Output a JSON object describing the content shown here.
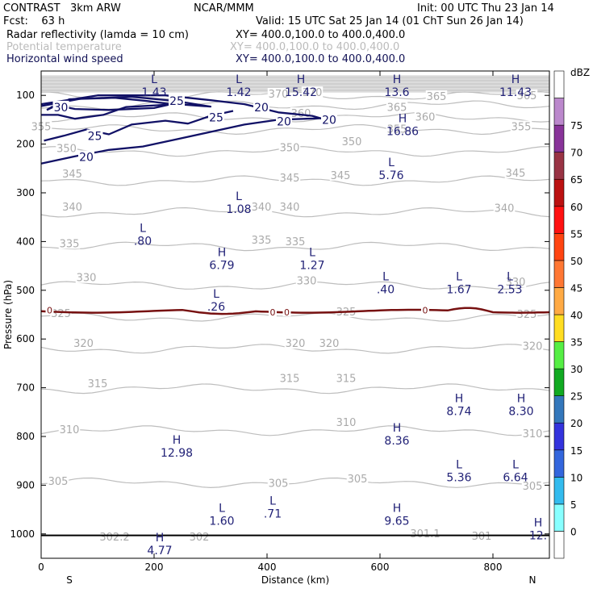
{
  "header": {
    "model": "CONTRAST   3km ARW",
    "center": "NCAR/MMM",
    "init": "Init: 00 UTC Thu 23 Jan 14",
    "fcst": "Fcst:    63 h",
    "valid": "Valid: 15 UTC Sat 25 Jan 14 (01 ChT Sun 26 Jan 14)",
    "fields": [
      {
        "name": "Radar reflectivity (lamda = 10 cm)",
        "xy": "XY= 400.0,100.0 to 400.0,400.0",
        "color": "#000000"
      },
      {
        "name": "Potential temperature",
        "xy": "XY= 400.0,100.0 to 400.0,400.0",
        "color": "#bbbbbb"
      },
      {
        "name": "Horizontal wind speed",
        "xy": "XY= 400.0,100.0 to 400.0,400.0",
        "color": "#111155"
      }
    ]
  },
  "chart_data": {
    "type": "cross-section contour",
    "xlabel": "Distance (km)",
    "ylabel": "Pressure (hPa)",
    "xlim": [
      0,
      900
    ],
    "ylim": [
      1050,
      50
    ],
    "x_ticks": [
      0,
      200,
      400,
      600,
      800
    ],
    "y_ticks": [
      100,
      200,
      300,
      400,
      500,
      600,
      700,
      800,
      900,
      1000
    ],
    "end_labels": {
      "left": "S",
      "right": "N"
    },
    "colorbar": {
      "unit": "dBZ",
      "levels": [
        0,
        5,
        10,
        15,
        20,
        25,
        30,
        35,
        40,
        45,
        50,
        55,
        60,
        65,
        70,
        75
      ],
      "colors": [
        "#ffffff",
        "#88ffff",
        "#33bbee",
        "#3366dd",
        "#3333dd",
        "#3377bb",
        "#11aa22",
        "#55ee44",
        "#ffdd22",
        "#ffaa44",
        "#ff7733",
        "#ff4411",
        "#ff1111",
        "#bb1111",
        "#993344",
        "#883399",
        "#bb88cc",
        "#ffffff"
      ]
    },
    "theta_contours": [
      {
        "value": 305,
        "pressure": 895
      },
      {
        "value": 310,
        "pressure": 788
      },
      {
        "value": 315,
        "pressure": 702
      },
      {
        "value": 320,
        "pressure": 620
      },
      {
        "value": 325,
        "pressure": 555
      },
      {
        "value": 330,
        "pressure": 490
      },
      {
        "value": 335,
        "pressure": 410
      },
      {
        "value": 340,
        "pressure": 340
      },
      {
        "value": 345,
        "pressure": 275
      },
      {
        "value": 350,
        "pressure": 215
      },
      {
        "value": 355,
        "pressure": 170
      },
      {
        "value": 360,
        "pressure": 145
      },
      {
        "value": 365,
        "pressure": 120
      },
      {
        "value": 370,
        "pressure": 100
      }
    ],
    "theta_labels": [
      {
        "text": "305",
        "x": 30,
        "p": 893
      },
      {
        "text": "305",
        "x": 420,
        "p": 897
      },
      {
        "text": "305",
        "x": 560,
        "p": 888
      },
      {
        "text": "305",
        "x": 870,
        "p": 903
      },
      {
        "text": "310",
        "x": 50,
        "p": 787
      },
      {
        "text": "310",
        "x": 540,
        "p": 772
      },
      {
        "text": "310",
        "x": 870,
        "p": 795
      },
      {
        "text": "315",
        "x": 100,
        "p": 692
      },
      {
        "text": "315",
        "x": 440,
        "p": 682
      },
      {
        "text": "315",
        "x": 540,
        "p": 682
      },
      {
        "text": "320",
        "x": 75,
        "p": 610
      },
      {
        "text": "320",
        "x": 450,
        "p": 610
      },
      {
        "text": "320",
        "x": 510,
        "p": 610
      },
      {
        "text": "320",
        "x": 870,
        "p": 615
      },
      {
        "text": "325",
        "x": 35,
        "p": 548
      },
      {
        "text": "325",
        "x": 540,
        "p": 545
      },
      {
        "text": "325",
        "x": 860,
        "p": 550
      },
      {
        "text": "330",
        "x": 80,
        "p": 475
      },
      {
        "text": "330",
        "x": 470,
        "p": 481
      },
      {
        "text": "330",
        "x": 840,
        "p": 484
      },
      {
        "text": "335",
        "x": 50,
        "p": 405
      },
      {
        "text": "335",
        "x": 390,
        "p": 398
      },
      {
        "text": "335",
        "x": 450,
        "p": 401
      },
      {
        "text": "340",
        "x": 55,
        "p": 330
      },
      {
        "text": "340",
        "x": 390,
        "p": 330
      },
      {
        "text": "340",
        "x": 440,
        "p": 330
      },
      {
        "text": "340",
        "x": 820,
        "p": 332
      },
      {
        "text": "345",
        "x": 55,
        "p": 262
      },
      {
        "text": "345",
        "x": 440,
        "p": 270
      },
      {
        "text": "345",
        "x": 530,
        "p": 265
      },
      {
        "text": "345",
        "x": 840,
        "p": 260
      },
      {
        "text": "350",
        "x": 45,
        "p": 210
      },
      {
        "text": "350",
        "x": 440,
        "p": 208
      },
      {
        "text": "350",
        "x": 550,
        "p": 196
      },
      {
        "text": "355",
        "x": 0,
        "p": 165
      },
      {
        "text": "355",
        "x": 630,
        "p": 170
      },
      {
        "text": "355",
        "x": 850,
        "p": 165
      },
      {
        "text": "360",
        "x": 460,
        "p": 138
      },
      {
        "text": "360",
        "x": 680,
        "p": 145
      },
      {
        "text": "365",
        "x": 630,
        "p": 125
      },
      {
        "text": "365",
        "x": 700,
        "p": 103
      },
      {
        "text": "365",
        "x": 860,
        "p": 101
      },
      {
        "text": "370",
        "x": 420,
        "p": 98
      },
      {
        "text": "370",
        "x": 480,
        "p": 95
      },
      {
        "text": "302.2",
        "x": 130,
        "p": 1007
      },
      {
        "text": "302",
        "x": 280,
        "p": 1007
      },
      {
        "text": "301.1",
        "x": 680,
        "p": 1000
      },
      {
        "text": "301",
        "x": 780,
        "p": 1005
      }
    ],
    "wind_contours": [
      {
        "value": 30,
        "path": [
          [
            10,
            130
          ],
          [
            50,
            108
          ],
          [
            130,
            105
          ],
          [
            190,
            112
          ],
          [
            230,
            118
          ],
          [
            200,
            126
          ],
          [
            120,
            130
          ],
          [
            60,
            128
          ],
          [
            25,
            120
          ],
          [
            10,
            130
          ]
        ]
      },
      {
        "value": 25,
        "path": [
          [
            0,
            122
          ],
          [
            70,
            107
          ],
          [
            160,
            103
          ],
          [
            240,
            112
          ],
          [
            300,
            123
          ],
          [
            240,
            118
          ],
          [
            150,
            124
          ],
          [
            110,
            140
          ],
          [
            60,
            148
          ],
          [
            30,
            140
          ],
          [
            0,
            140
          ]
        ]
      },
      {
        "value": 25,
        "path": [
          [
            5,
            193
          ],
          [
            40,
            183
          ],
          [
            80,
            170
          ],
          [
            120,
            180
          ],
          [
            160,
            160
          ],
          [
            220,
            152
          ],
          [
            260,
            158
          ],
          [
            300,
            142
          ],
          [
            340,
            132
          ]
        ]
      },
      {
        "value": 20,
        "path": [
          [
            0,
            118
          ],
          [
            100,
            100
          ],
          [
            220,
            100
          ],
          [
            300,
            110
          ],
          [
            360,
            118
          ],
          [
            420,
            135
          ],
          [
            480,
            142
          ],
          [
            510,
            152
          ]
        ]
      },
      {
        "value": 20,
        "path": [
          [
            0,
            240
          ],
          [
            60,
            225
          ],
          [
            120,
            212
          ],
          [
            180,
            205
          ],
          [
            240,
            190
          ],
          [
            300,
            175
          ],
          [
            360,
            160
          ],
          [
            420,
            150
          ],
          [
            470,
            148
          ],
          [
            520,
            146
          ]
        ]
      }
    ],
    "wind_labels": [
      {
        "text": "30",
        "x": 35,
        "p": 126
      },
      {
        "text": "25",
        "x": 95,
        "p": 185
      },
      {
        "text": "25",
        "x": 240,
        "p": 113
      },
      {
        "text": "25",
        "x": 310,
        "p": 147
      },
      {
        "text": "20",
        "x": 80,
        "p": 228
      },
      {
        "text": "20",
        "x": 390,
        "p": 126
      },
      {
        "text": "20",
        "x": 430,
        "p": 155
      },
      {
        "text": "20",
        "x": 510,
        "p": 152
      }
    ],
    "reflectivity_line": {
      "label": "0",
      "pressure": 543
    },
    "extrema": [
      {
        "type": "L",
        "value": "1.43",
        "x": 200,
        "p": 75
      },
      {
        "type": "L",
        "value": "1.42",
        "x": 350,
        "p": 75
      },
      {
        "type": "H",
        "value": "15.42",
        "x": 460,
        "p": 75
      },
      {
        "type": "H",
        "value": "13.6",
        "x": 630,
        "p": 75
      },
      {
        "type": "H",
        "value": "11.43",
        "x": 840,
        "p": 75
      },
      {
        "type": "H",
        "value": "16.86",
        "x": 640,
        "p": 155
      },
      {
        "type": "L",
        "value": "5.76",
        "x": 620,
        "p": 245
      },
      {
        "type": "L",
        "value": "1.08",
        "x": 350,
        "p": 315
      },
      {
        "type": "L",
        "value": ".80",
        "x": 180,
        "p": 380
      },
      {
        "type": "H",
        "value": "6.79",
        "x": 320,
        "p": 430
      },
      {
        "type": "L",
        "value": "1.27",
        "x": 480,
        "p": 430
      },
      {
        "type": "L",
        "value": ".40",
        "x": 610,
        "p": 480
      },
      {
        "type": "L",
        "value": "1.67",
        "x": 740,
        "p": 480
      },
      {
        "type": "L",
        "value": "2.53",
        "x": 830,
        "p": 480
      },
      {
        "type": "L",
        "value": ".26",
        "x": 310,
        "p": 515
      },
      {
        "type": "H",
        "value": "8.74",
        "x": 740,
        "p": 730
      },
      {
        "type": "H",
        "value": "8.30",
        "x": 850,
        "p": 730
      },
      {
        "type": "H",
        "value": "8.36",
        "x": 630,
        "p": 790
      },
      {
        "type": "H",
        "value": "12.98",
        "x": 240,
        "p": 815
      },
      {
        "type": "L",
        "value": "5.36",
        "x": 740,
        "p": 865
      },
      {
        "type": "L",
        "value": "6.64",
        "x": 840,
        "p": 865
      },
      {
        "type": "L",
        "value": "1.60",
        "x": 320,
        "p": 955
      },
      {
        "type": "L",
        "value": ".71",
        "x": 410,
        "p": 940
      },
      {
        "type": "H",
        "value": "9.65",
        "x": 630,
        "p": 955
      },
      {
        "type": "H",
        "value": "12.",
        "x": 880,
        "p": 985
      },
      {
        "type": "H",
        "value": "4.77",
        "x": 210,
        "p": 1015
      }
    ]
  }
}
